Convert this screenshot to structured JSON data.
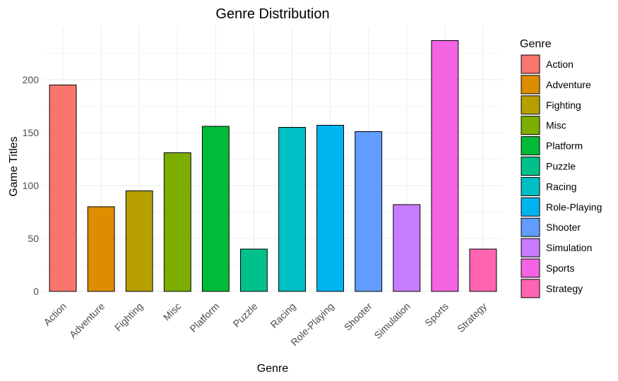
{
  "chart_data": {
    "type": "bar",
    "title": "Genre Distribution",
    "xlabel": "Genre",
    "ylabel": "Game Titles",
    "categories": [
      "Action",
      "Adventure",
      "Fighting",
      "Misc",
      "Platform",
      "Puzzle",
      "Racing",
      "Role-Playing",
      "Shooter",
      "Simulation",
      "Sports",
      "Strategy"
    ],
    "values": [
      195,
      80,
      95,
      131,
      156,
      40,
      155,
      157,
      151,
      82,
      237,
      40
    ],
    "colors": [
      "#F8766D",
      "#DE8C00",
      "#B79F00",
      "#7CAE00",
      "#00BA38",
      "#00C08B",
      "#00BFC4",
      "#00B4F0",
      "#619CFF",
      "#C77CFF",
      "#F564E3",
      "#FF64B0"
    ],
    "ylim": [
      0,
      250
    ],
    "yticks": [
      0,
      50,
      100,
      150,
      200
    ],
    "grid": true,
    "legend": {
      "title": "Genre",
      "position": "right"
    }
  }
}
